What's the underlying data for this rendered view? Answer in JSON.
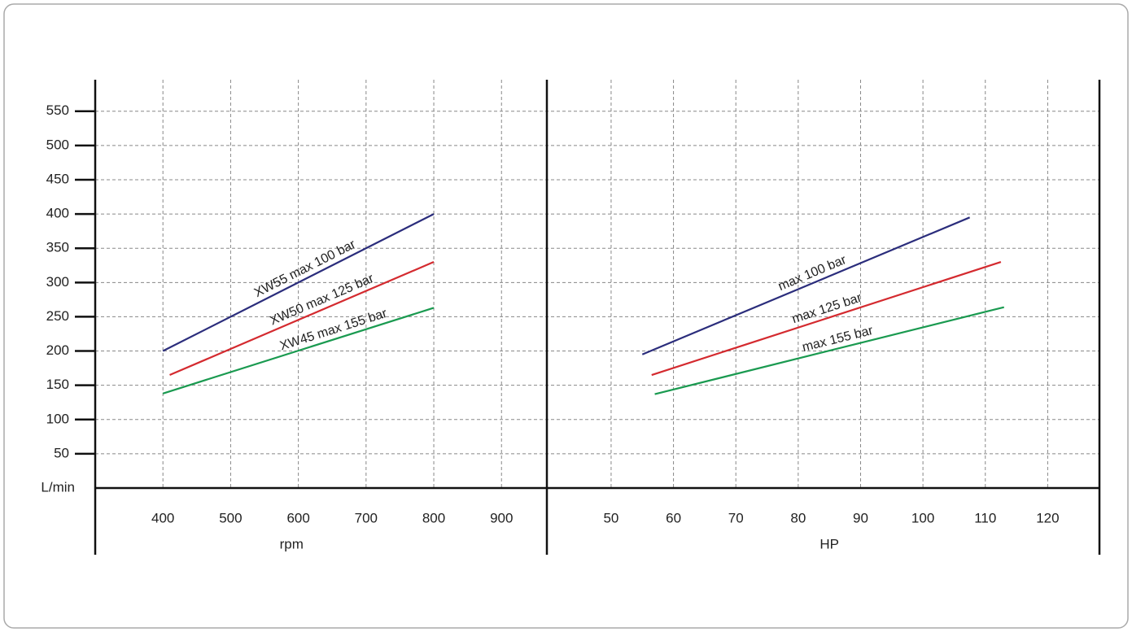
{
  "chart_data": [
    {
      "type": "line",
      "x_label": "rpm",
      "y_label": "L/min",
      "x": [
        400,
        800
      ],
      "xlim": [
        300,
        967
      ],
      "ylim": [
        0,
        596
      ],
      "xticks": [
        400,
        500,
        600,
        700,
        800,
        900
      ],
      "yticks": [
        50,
        100,
        150,
        200,
        250,
        300,
        350,
        400,
        450,
        500,
        550
      ],
      "grid": true,
      "series": [
        {
          "name": "XW55 max 100 bar",
          "color": "#2b2d7c",
          "x": [
            400,
            800
          ],
          "values": [
            200,
            400
          ]
        },
        {
          "name": "XW50 max 125 bar",
          "color": "#d42a2f",
          "x": [
            410,
            800
          ],
          "values": [
            165,
            330
          ]
        },
        {
          "name": "XW45 max 155 bar",
          "color": "#1a9a50",
          "x": [
            400,
            800
          ],
          "values": [
            138,
            263
          ]
        }
      ]
    },
    {
      "type": "line",
      "x_label": "HP",
      "xlim": [
        39.7,
        128.3
      ],
      "ylim": [
        0,
        596
      ],
      "xticks": [
        50,
        60,
        70,
        80,
        90,
        100,
        110,
        120
      ],
      "grid": true,
      "series": [
        {
          "name": "max 100 bar",
          "color": "#2b2d7c",
          "x": [
            55,
            107.5
          ],
          "values": [
            195,
            395
          ]
        },
        {
          "name": "max 125 bar",
          "color": "#d42a2f",
          "x": [
            56.5,
            112.5
          ],
          "values": [
            165,
            330
          ]
        },
        {
          "name": "max 155 bar",
          "color": "#1a9a50",
          "x": [
            57,
            113
          ],
          "values": [
            137,
            264
          ]
        }
      ]
    }
  ]
}
